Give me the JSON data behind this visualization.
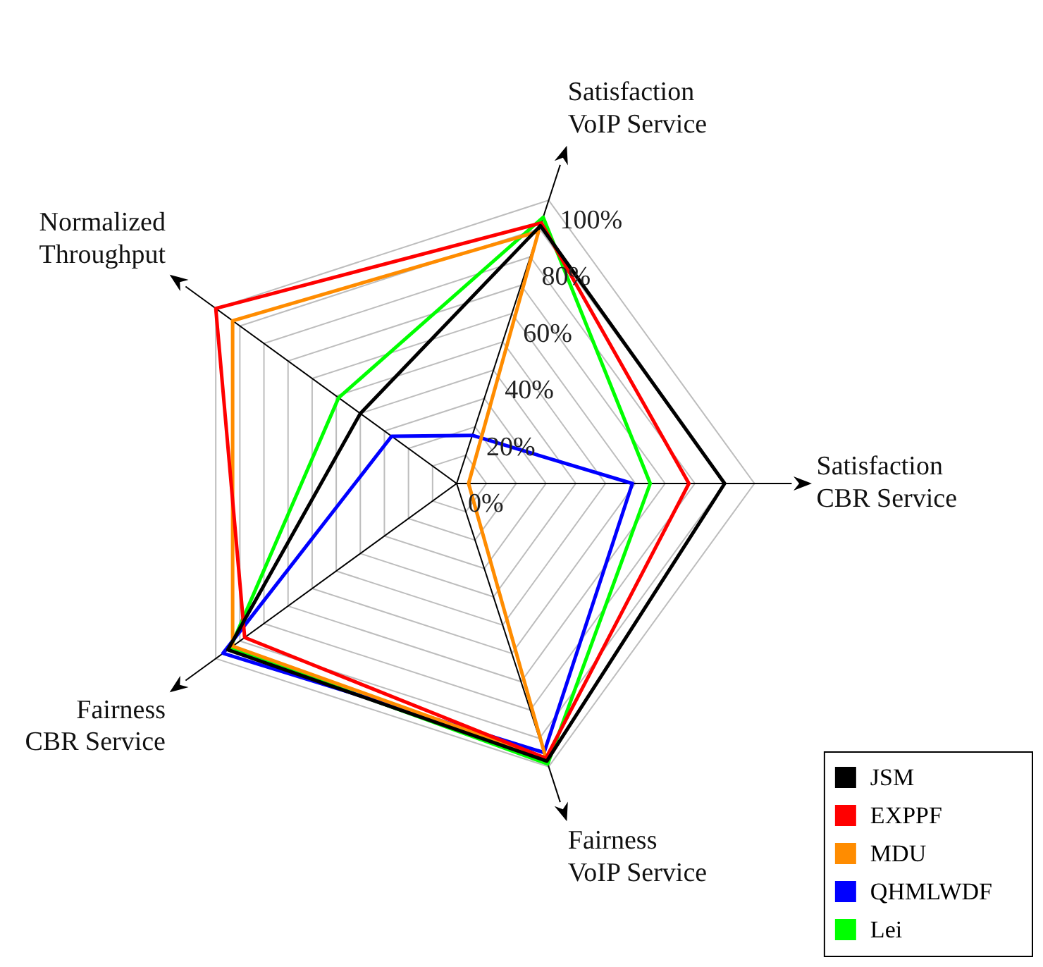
{
  "chart_data": {
    "type": "radar",
    "categories": [
      "Satisfaction VoIP Service",
      "Satisfaction CBR Service",
      "Fairness VoIP Service",
      "Fairness CBR Service",
      "Normalized Throughput"
    ],
    "series": [
      {
        "name": "JSM",
        "color": "#000000",
        "values": [
          91,
          90,
          98,
          95,
          40
        ]
      },
      {
        "name": "EXPPF",
        "color": "#ff0000",
        "values": [
          92,
          78,
          97,
          88,
          100
        ]
      },
      {
        "name": "MDU",
        "color": "#ff8c00",
        "values": [
          89,
          4,
          97,
          93,
          93
        ]
      },
      {
        "name": "QHMLWDF",
        "color": "#0000ff",
        "values": [
          17,
          59,
          95,
          97,
          27
        ]
      },
      {
        "name": "Lei",
        "color": "#00ff00",
        "values": [
          94,
          65,
          99,
          94,
          49
        ]
      }
    ],
    "ylim": [
      0,
      100
    ],
    "yticks": [
      {
        "value": 0,
        "label": "0%"
      },
      {
        "value": 20,
        "label": "20%"
      },
      {
        "value": 40,
        "label": "40%"
      },
      {
        "value": 60,
        "label": "60%"
      },
      {
        "value": 80,
        "label": "80%"
      },
      {
        "value": 100,
        "label": "100%"
      }
    ],
    "grid": true,
    "legend": "bottom right",
    "marker": "none",
    "line_style": "solid"
  }
}
